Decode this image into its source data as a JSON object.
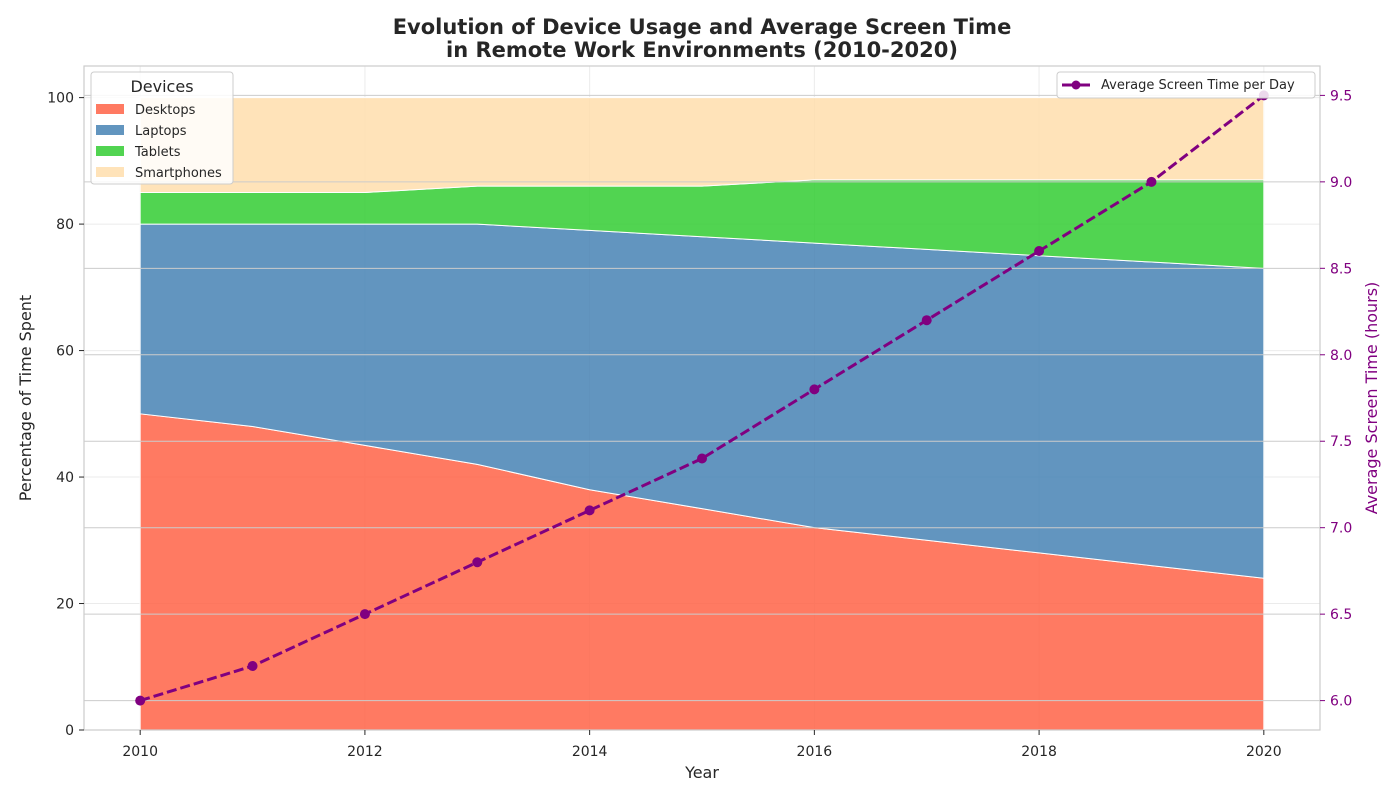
{
  "chart_data": {
    "type": "area",
    "title_lines": [
      "Evolution of Device Usage and Average Screen Time",
      "in Remote Work Environments (2010-2020)"
    ],
    "xlabel": "Year",
    "ylabel": "Percentage of Time Spent",
    "y2label": "Average Screen Time (hours)",
    "x": [
      2010,
      2011,
      2012,
      2013,
      2014,
      2015,
      2016,
      2017,
      2018,
      2019,
      2020
    ],
    "xlim": [
      2009.5,
      2020.5
    ],
    "xticks": [
      "2010",
      "2012",
      "2014",
      "2016",
      "2018",
      "2020"
    ],
    "ylim": [
      0,
      105
    ],
    "yticks": [
      "0",
      "20",
      "40",
      "60",
      "80",
      "100"
    ],
    "y2lim": [
      5.83,
      9.67
    ],
    "y2ticks": [
      "6.0",
      "6.5",
      "7.0",
      "7.5",
      "8.0",
      "8.5",
      "9.0",
      "9.5"
    ],
    "stacked": true,
    "legend_title": "Devices",
    "legend_position": "top-left",
    "series": [
      {
        "name": "Desktops",
        "color": "#FF6347",
        "values": [
          50,
          48,
          45,
          42,
          38,
          35,
          32,
          30,
          28,
          26,
          24
        ]
      },
      {
        "name": "Laptops",
        "color": "#4682B4",
        "values": [
          30,
          32,
          35,
          38,
          41,
          43,
          45,
          46,
          47,
          48,
          49
        ]
      },
      {
        "name": "Tablets",
        "color": "#32CD32",
        "values": [
          5,
          5,
          5,
          6,
          7,
          8,
          10,
          11,
          12,
          13,
          14
        ]
      },
      {
        "name": "Smartphones",
        "color": "#FFDEAD",
        "values": [
          15,
          15,
          15,
          14,
          14,
          14,
          13,
          13,
          13,
          13,
          13
        ]
      }
    ],
    "line_series": {
      "name": "Average Screen Time per Day",
      "color": "#800080",
      "axis": "right",
      "style": "dashed",
      "values": [
        6.0,
        6.2,
        6.5,
        6.8,
        7.1,
        7.4,
        7.8,
        8.2,
        8.6,
        9.0,
        9.5
      ]
    },
    "line_legend_position": "top-right",
    "grid": true
  }
}
